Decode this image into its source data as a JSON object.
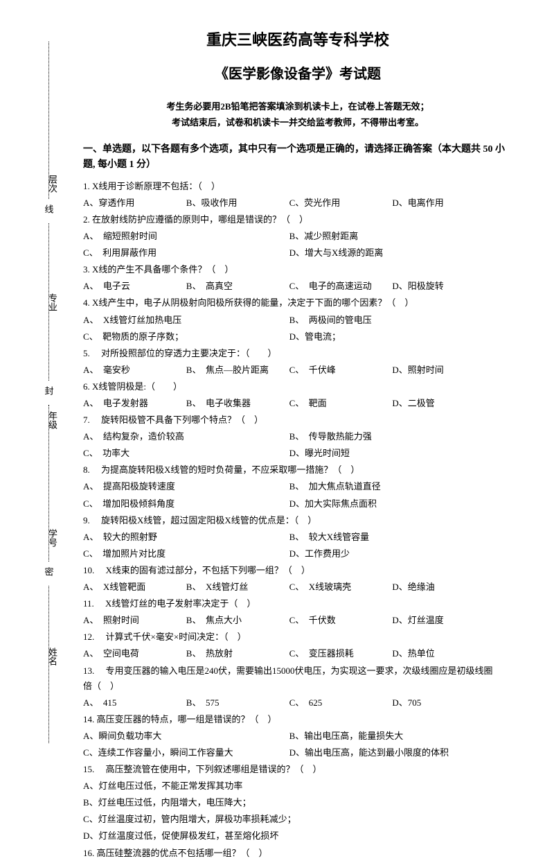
{
  "header": {
    "school": "重庆三峡医药高等专科学校",
    "exam_title": "《医学影像设备学》考试题",
    "instruction1": "考生务必要用2B铅笔把答案填涂到机读卡上，在试卷上答题无效；",
    "instruction2": "考试结束后，试卷和机读卡一并交给监考教师，不得带出考室。"
  },
  "binding": {
    "labels": [
      "层次",
      "专业",
      "年级",
      "学号",
      "姓名"
    ],
    "seal_chars": [
      "线",
      "封",
      "密"
    ]
  },
  "section1": {
    "title": "一、单选题，以下各题有多个选项，其中只有一个选项是正确的，请选择正确答案（本大题共 50 小题, 每小题 1 分）"
  },
  "questions": [
    {
      "num": "1.",
      "text": "X线用于诊断原理不包括：（　）",
      "options": [
        "A、穿透作用",
        "B、吸收作用",
        "C、荧光作用",
        "D、电离作用"
      ],
      "layout": "opt-4"
    },
    {
      "num": "2.",
      "text": "在放射线防护应遵循的原则中，哪组是错误的？（　）",
      "options": [
        "A、　缩短照射时间",
        "B、减少照射距离",
        "C、　利用屏蔽作用",
        "D、增大与X线源的距离"
      ],
      "layout": "opt-2"
    },
    {
      "num": "3.",
      "text": "X线的产生不具备哪个条件？（　）",
      "options": [
        "A、　电子云",
        "B、　高真空",
        "C、　电子的高速运动",
        "D、阳极旋转"
      ],
      "layout": "opt-4"
    },
    {
      "num": "4.",
      "text": "X线产生中，电子从阴极射向阳极所获得的能量，决定于下面的哪个因素？（　）",
      "options": [
        "A、　X线管灯丝加热电压",
        "B、　两极间的管电压",
        "C、　靶物质的原子序数；",
        "D、管电流；"
      ],
      "layout": "opt-2"
    },
    {
      "num": "5.",
      "text": "　对所投照部位的穿透力主要决定于：（　　）",
      "options": [
        "A、　毫安秒",
        "B、　焦点—胶片距离",
        "C、　千伏峰",
        "D、照射时间"
      ],
      "layout": "opt-4"
    },
    {
      "num": "6.",
      "text": "X线管阴极是:（　　）",
      "options": [
        "A、　电子发射器",
        "B、　电子收集器",
        "C、　靶面",
        "D、二极管"
      ],
      "layout": "opt-4"
    },
    {
      "num": "7.",
      "text": "　旋转阳极管不具备下列哪个特点？（　）",
      "options": [
        "A、　结构复杂，造价较高",
        "B、　传导散热能力强",
        "C、　功率大",
        "D、曝光时间短"
      ],
      "layout": "opt-2"
    },
    {
      "num": "8.",
      "text": "　为提高旋转阳极X线管的短时负荷量，不应采取哪一措施？（　）",
      "options": [
        "A、　提高阳极旋转速度",
        "B、　加大焦点轨道直径",
        "C、　增加阳极倾斜角度",
        "D、加大实际焦点面积"
      ],
      "layout": "opt-2"
    },
    {
      "num": "9.",
      "text": "　旋转阳极X线管，超过固定阳极X线管的优点是：（　）",
      "options": [
        "A、　较大的照射野",
        "B、　较大X线管容量",
        "C、　增加照片对比度",
        "D、工作费用少"
      ],
      "layout": "opt-2"
    },
    {
      "num": "10.",
      "text": "　X线束的固有滤过部分，不包括下列哪一组？（　）",
      "options": [
        "A、　X线管靶面",
        "B、　X线管灯丝",
        "C、　X线玻璃壳",
        "D、绝缘油"
      ],
      "layout": "opt-4"
    },
    {
      "num": "11.",
      "text": "　X线管灯丝的电子发射率决定于（　）",
      "options": [
        "A、　照射时间",
        "B、　焦点大小",
        "C、　千伏数",
        "D、灯丝温度"
      ],
      "layout": "opt-4"
    },
    {
      "num": "12.",
      "text": "　计算式千伏×毫安×时间决定：（　）",
      "options": [
        "A、　空间电荷",
        "B、　热放射",
        "C、　变压器损耗",
        "D、热单位"
      ],
      "layout": "opt-4"
    },
    {
      "num": "13.",
      "text": "　专用变压器的输入电压是240伏，需要输出15000伏电压，为实现这一要求，次级线圈应是初级线圈　　　倍（　）",
      "options": [
        "A、　415",
        "B、　575",
        "C、　625",
        "D、705"
      ],
      "layout": "opt-4"
    },
    {
      "num": "14.",
      "text": "高压变压器的特点，哪一组是错误的？（　）",
      "options": [
        "A、瞬间负载功率大",
        "B、输出电压高，能量损失大",
        "C、连续工作容量小，瞬间工作容量大",
        "D、输出电压高，能达到最小限度的体积"
      ],
      "layout": "opt-2"
    },
    {
      "num": "15.",
      "text": "　高压整流管在使用中，下列叙述哪组是错误的？（　）",
      "options": [
        "A、灯丝电压过低，不能正常发挥其功率",
        "B、灯丝电压过低，内阻增大，电压降大；",
        "C、灯丝温度过初，管内阻增大，屏极功率损耗减少；",
        "D、灯丝温度过低，促使屏极发红，甚至熔化损坏"
      ],
      "layout": "opt-1"
    },
    {
      "num": "16.",
      "text": "高压硅整流器的优点不包括哪一组？（　）",
      "options": [],
      "layout": ""
    }
  ]
}
